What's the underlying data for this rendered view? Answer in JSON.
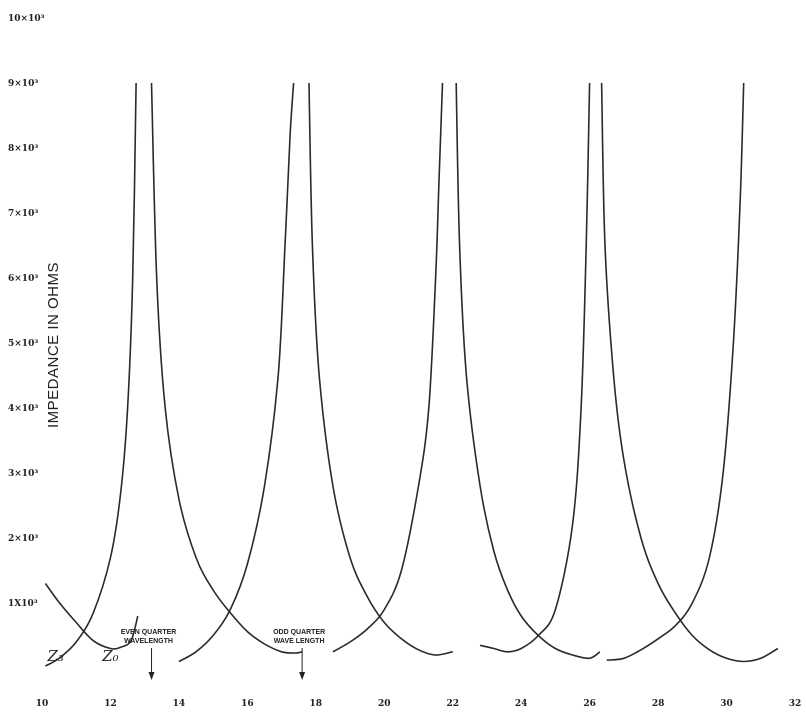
{
  "chart_data": {
    "type": "line",
    "title": "",
    "xlabel": "",
    "ylabel": "IMPEDANCE IN OHMS",
    "xlim": [
      10,
      32
    ],
    "ylim": [
      0,
      10000
    ],
    "grid": false,
    "x_ticks": [
      10,
      12,
      14,
      16,
      18,
      20,
      22,
      24,
      26,
      28,
      30,
      32
    ],
    "x_tick_labels": [
      "10",
      "12",
      "14",
      "16",
      "18",
      "20",
      "22",
      "24",
      "26",
      "28",
      "30",
      "32"
    ],
    "y_ticks": [
      1000,
      2000,
      3000,
      4000,
      5000,
      6000,
      7000,
      8000,
      9000,
      10000
    ],
    "y_tick_labels": [
      "1X10³",
      "2×10³",
      "3×10³",
      "4×10³",
      "5×10³",
      "6×10³",
      "7×10³",
      "8×10³",
      "9×10³",
      "10×10³"
    ],
    "series": [
      {
        "name": "Z3",
        "label": "Z₃",
        "x": [
          10.1,
          10.5,
          11.0,
          11.5,
          12.0,
          12.3,
          12.6,
          12.8
        ],
        "y": [
          1300,
          1010,
          700,
          420,
          300,
          320,
          420,
          800
        ]
      },
      {
        "name": "curve-1",
        "x": [
          10.1,
          10.5,
          11.0,
          11.5,
          12.0,
          12.3,
          12.5,
          12.65,
          12.75
        ],
        "y": [
          30,
          150,
          400,
          850,
          1700,
          2700,
          4000,
          6000,
          9000
        ]
      },
      {
        "name": "curve-2",
        "x": [
          13.2,
          13.35,
          13.6,
          14.0,
          14.5,
          15.0,
          15.5,
          16.0,
          16.5,
          17.0,
          17.4,
          17.6
        ],
        "y": [
          9000,
          6000,
          4000,
          2600,
          1700,
          1200,
          850,
          560,
          370,
          250,
          230,
          250
        ]
      },
      {
        "name": "curve-3",
        "x": [
          14.0,
          14.5,
          15.0,
          15.5,
          16.0,
          16.5,
          16.9,
          17.1,
          17.25,
          17.35
        ],
        "y": [
          100,
          250,
          500,
          900,
          1600,
          2800,
          4500,
          6500,
          8200,
          9000
        ]
      },
      {
        "name": "curve-4",
        "x": [
          17.8,
          17.9,
          18.1,
          18.5,
          19.0,
          19.5,
          20.0,
          20.5,
          21.0,
          21.5,
          22.0
        ],
        "y": [
          9000,
          6500,
          4500,
          2800,
          1700,
          1100,
          700,
          450,
          280,
          200,
          250
        ]
      },
      {
        "name": "curve-5",
        "x": [
          18.5,
          19.0,
          19.5,
          20.0,
          20.5,
          21.0,
          21.3,
          21.5,
          21.6,
          21.7
        ],
        "y": [
          250,
          400,
          600,
          900,
          1500,
          2800,
          4000,
          6000,
          7500,
          9000
        ]
      },
      {
        "name": "curve-6",
        "x": [
          22.1,
          22.2,
          22.4,
          22.8,
          23.2,
          23.6,
          24.0,
          24.5,
          25.0,
          25.5,
          26.0,
          26.3
        ],
        "y": [
          9000,
          6500,
          4500,
          2800,
          1800,
          1200,
          800,
          500,
          300,
          200,
          150,
          250
        ]
      },
      {
        "name": "curve-7",
        "x": [
          22.8,
          23.2,
          23.6,
          24.0,
          24.5,
          25.0,
          25.5,
          25.75,
          25.9,
          26.0
        ],
        "y": [
          350,
          300,
          250,
          300,
          500,
          900,
          2200,
          4000,
          6500,
          9000
        ]
      },
      {
        "name": "curve-8",
        "x": [
          26.35,
          26.45,
          26.7,
          27.0,
          27.5,
          28.0,
          28.5,
          29.0,
          29.5,
          30.0,
          30.5,
          31.0,
          31.5
        ],
        "y": [
          9000,
          6500,
          4500,
          3200,
          2000,
          1300,
          850,
          500,
          280,
          150,
          100,
          150,
          300
        ]
      },
      {
        "name": "curve-9",
        "x": [
          26.5,
          27.0,
          27.5,
          28.0,
          28.5,
          29.0,
          29.5,
          29.9,
          30.2,
          30.4,
          30.5
        ],
        "y": [
          120,
          150,
          280,
          450,
          650,
          1000,
          1700,
          3000,
          5000,
          7200,
          9000
        ]
      }
    ],
    "annotations": [
      {
        "text_lines": [
          "EVEN QUARTER",
          "WAVELENGTH"
        ],
        "x": 13.2,
        "y": 100,
        "arrow": true
      },
      {
        "text_lines": [
          "ODD QUARTER",
          "WAVE LENGTH"
        ],
        "x": 17.6,
        "y": 100,
        "arrow": true
      },
      {
        "text": "Z₃",
        "x": 10.4,
        "y": 350
      },
      {
        "text": "Z₀",
        "x": 12.0,
        "y": 350
      }
    ]
  }
}
